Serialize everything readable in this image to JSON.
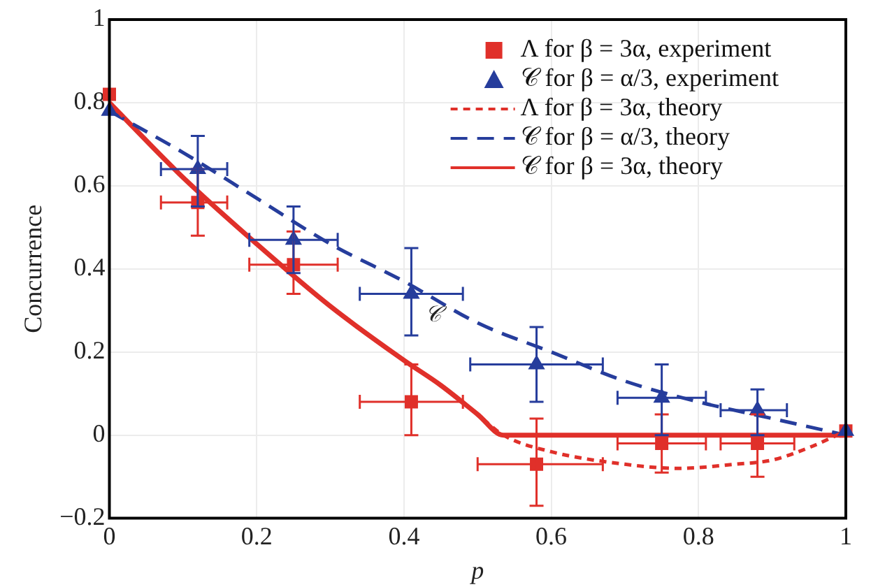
{
  "chart_data": {
    "type": "scatter",
    "xlabel": "p",
    "ylabel": "Concurrence",
    "xlim": [
      0,
      1
    ],
    "ylim": [
      -0.2,
      1
    ],
    "xticks": [
      0,
      0.2,
      0.4,
      0.6,
      0.8,
      1
    ],
    "yticks": [
      -0.2,
      0,
      0.2,
      0.4,
      0.6,
      0.8,
      1
    ],
    "grid": true,
    "legend": "top right",
    "series": [
      {
        "name": "Λ for β = 3α, experiment",
        "color": "#e0302a",
        "marker": "square",
        "x": [
          0,
          0.12,
          0.25,
          0.41,
          0.58,
          0.75,
          0.88,
          1
        ],
        "values": [
          0.82,
          0.56,
          0.41,
          0.08,
          -0.07,
          -0.02,
          -0.02,
          0.01
        ],
        "errors": [
          null,
          [
            0.48,
            0.64
          ],
          [
            0.34,
            0.49
          ],
          [
            0,
            0.17
          ],
          [
            -0.17,
            0.04
          ],
          [
            -0.09,
            0.05
          ],
          [
            -0.1,
            0.05
          ],
          null
        ],
        "xerrors": [
          null,
          [
            0.07,
            0.16
          ],
          [
            0.19,
            0.31
          ],
          [
            0.34,
            0.48
          ],
          [
            0.5,
            0.67
          ],
          [
            0.69,
            0.81
          ],
          [
            0.83,
            0.93
          ],
          null
        ]
      },
      {
        "name": "𝒞 for β = α/3, experiment",
        "color": "#263d9c",
        "marker": "triangle",
        "x": [
          0,
          0.12,
          0.25,
          0.41,
          0.58,
          0.75,
          0.88,
          1
        ],
        "values": [
          0.78,
          0.64,
          0.47,
          0.34,
          0.17,
          0.09,
          0.06,
          0.01
        ],
        "errors": [
          null,
          [
            0.55,
            0.72
          ],
          [
            0.39,
            0.55
          ],
          [
            0.24,
            0.45
          ],
          [
            0.08,
            0.26
          ],
          [
            0,
            0.17
          ],
          [
            0,
            0.11
          ],
          null
        ],
        "xerrors": [
          null,
          [
            0.07,
            0.16
          ],
          [
            0.19,
            0.31
          ],
          [
            0.34,
            0.48
          ],
          [
            0.49,
            0.67
          ],
          [
            0.69,
            0.81
          ],
          [
            0.83,
            0.92
          ],
          null
        ]
      },
      {
        "name": "Λ for β = 3α, theory",
        "color": "#e0302a",
        "type": "line",
        "line_style": "dotted",
        "marker": "none",
        "x": [
          0,
          0.1,
          0.2,
          0.3,
          0.4,
          0.45,
          0.5,
          0.535,
          0.6,
          0.7,
          0.77,
          0.85,
          0.9,
          0.95,
          1
        ],
        "values": [
          0.8,
          0.62,
          0.46,
          0.31,
          0.18,
          0.12,
          0.05,
          0,
          -0.04,
          -0.07,
          -0.08,
          -0.07,
          -0.06,
          -0.03,
          0.01
        ]
      },
      {
        "name": "𝒞 for β = α/3, theory",
        "color": "#263d9c",
        "type": "line",
        "line_style": "dashed",
        "marker": "none",
        "x": [
          0,
          0.1,
          0.2,
          0.3,
          0.4,
          0.5,
          0.6,
          0.7,
          0.8,
          0.9,
          1
        ],
        "values": [
          0.78,
          0.68,
          0.57,
          0.46,
          0.37,
          0.27,
          0.2,
          0.13,
          0.08,
          0.04,
          0
        ]
      },
      {
        "name": "𝒞 for β = 3α, theory",
        "color": "#e0302a",
        "type": "line",
        "line_style": "solid",
        "marker": "none",
        "x": [
          0,
          0.1,
          0.2,
          0.3,
          0.4,
          0.45,
          0.5,
          0.535,
          1
        ],
        "values": [
          0.8,
          0.62,
          0.46,
          0.31,
          0.18,
          0.12,
          0.05,
          0,
          0
        ]
      }
    ],
    "annotations": [
      {
        "text": "𝒞",
        "x": 0.44,
        "y": 0.335
      }
    ]
  }
}
